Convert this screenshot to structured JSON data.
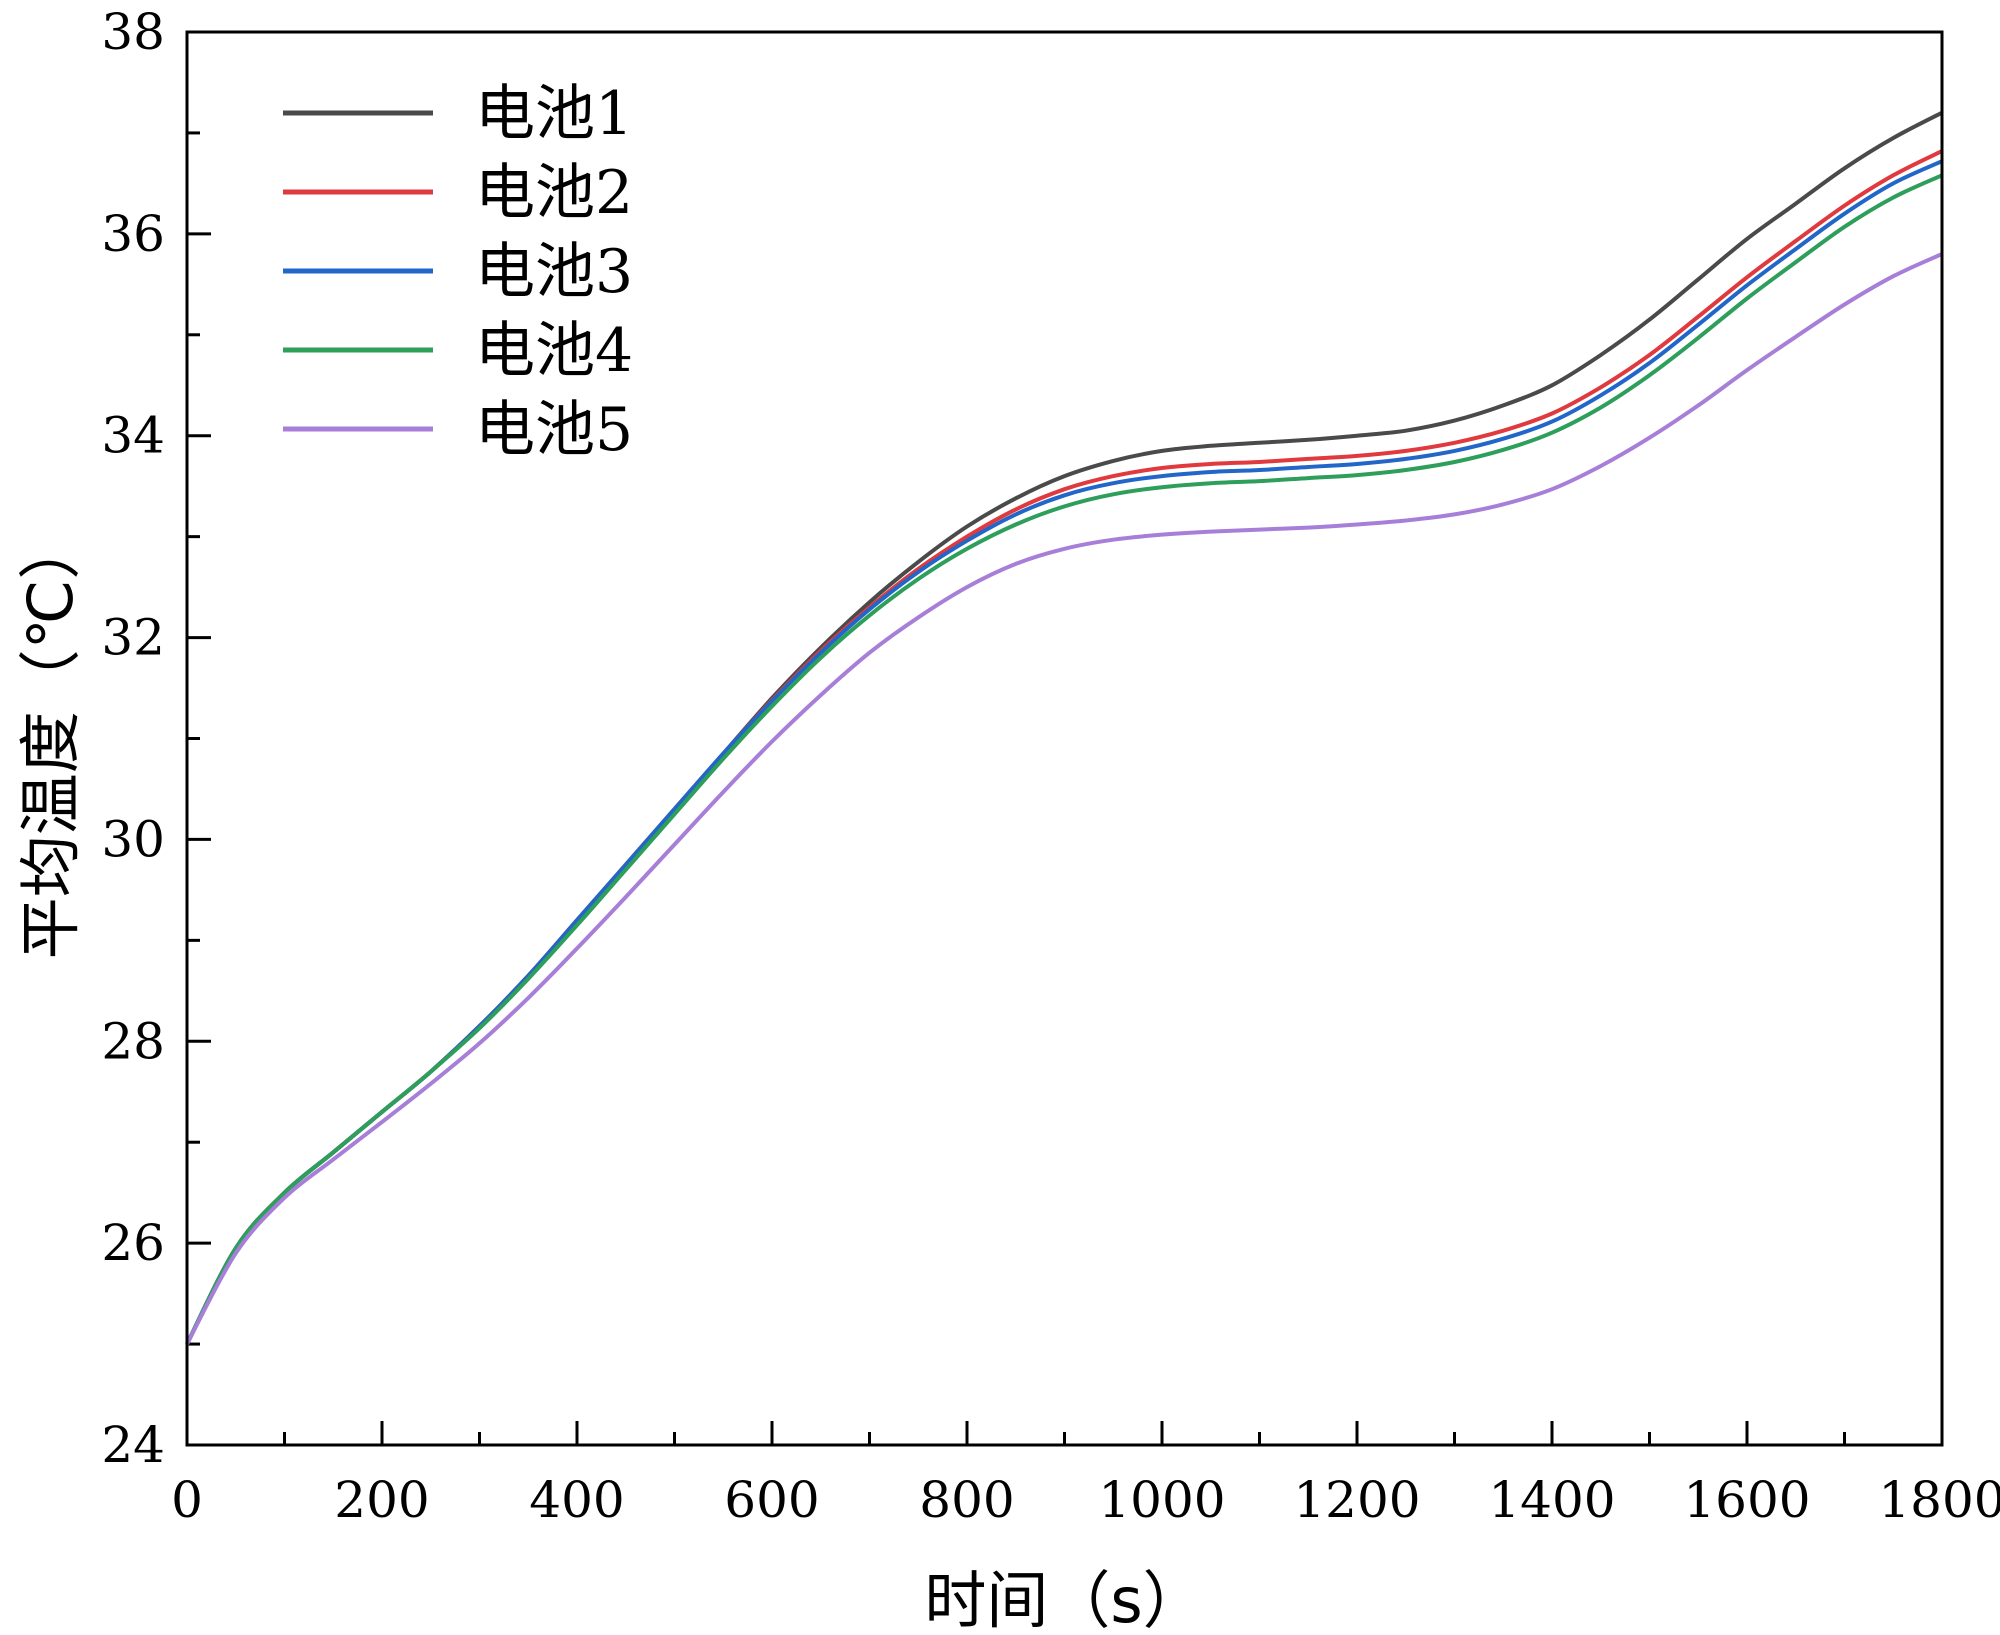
{
  "chart_data": {
    "type": "line",
    "title": "",
    "xlabel": "时间（s）",
    "ylabel": "平均温度（℃）",
    "xlim": [
      0,
      1800
    ],
    "ylim": [
      24,
      38
    ],
    "xticks": [
      0,
      200,
      400,
      600,
      800,
      1000,
      1200,
      1400,
      1600,
      1800
    ],
    "yticks": [
      24,
      26,
      28,
      30,
      32,
      34,
      36,
      38
    ],
    "xtick_labels": [
      "0",
      "200",
      "400",
      "600",
      "800",
      "1000",
      "1200",
      "1400",
      "1600",
      "1800"
    ],
    "ytick_labels": [
      "24",
      "26",
      "28",
      "30",
      "32",
      "34",
      "36",
      "38"
    ],
    "grid": false,
    "legend_position": "top-left",
    "x": [
      0,
      50,
      100,
      150,
      200,
      250,
      300,
      350,
      400,
      450,
      500,
      550,
      600,
      650,
      700,
      750,
      800,
      850,
      900,
      950,
      1000,
      1050,
      1100,
      1150,
      1200,
      1250,
      1300,
      1350,
      1400,
      1450,
      1500,
      1550,
      1600,
      1650,
      1700,
      1750,
      1800
    ],
    "series": [
      {
        "name": "电池1",
        "color": "#4a4a4a",
        "values": [
          25.0,
          25.95,
          26.5,
          26.9,
          27.3,
          27.7,
          28.15,
          28.65,
          29.2,
          29.75,
          30.3,
          30.85,
          31.4,
          31.9,
          32.35,
          32.75,
          33.1,
          33.38,
          33.6,
          33.75,
          33.85,
          33.9,
          33.93,
          33.96,
          34.0,
          34.05,
          34.15,
          34.3,
          34.5,
          34.8,
          35.15,
          35.55,
          35.95,
          36.3,
          36.65,
          36.95,
          37.2
        ]
      },
      {
        "name": "电池2",
        "color": "#e0393e",
        "values": [
          25.0,
          25.95,
          26.5,
          26.9,
          27.3,
          27.7,
          28.15,
          28.65,
          29.2,
          29.75,
          30.3,
          30.85,
          31.38,
          31.87,
          32.3,
          32.68,
          33.0,
          33.27,
          33.47,
          33.6,
          33.68,
          33.72,
          33.74,
          33.77,
          33.8,
          33.85,
          33.93,
          34.05,
          34.22,
          34.48,
          34.8,
          35.18,
          35.57,
          35.93,
          36.28,
          36.58,
          36.82
        ]
      },
      {
        "name": "电池3",
        "color": "#2166c8",
        "values": [
          25.0,
          25.95,
          26.5,
          26.9,
          27.3,
          27.7,
          28.15,
          28.65,
          29.2,
          29.75,
          30.3,
          30.85,
          31.37,
          31.85,
          32.28,
          32.65,
          32.96,
          33.22,
          33.41,
          33.53,
          33.6,
          33.64,
          33.66,
          33.69,
          33.72,
          33.77,
          33.85,
          33.97,
          34.14,
          34.4,
          34.72,
          35.1,
          35.49,
          35.85,
          36.2,
          36.5,
          36.72
        ]
      },
      {
        "name": "电池4",
        "color": "#2e9e5b",
        "values": [
          25.0,
          25.95,
          26.5,
          26.9,
          27.3,
          27.7,
          28.13,
          28.62,
          29.15,
          29.7,
          30.25,
          30.8,
          31.32,
          31.8,
          32.22,
          32.58,
          32.88,
          33.12,
          33.3,
          33.42,
          33.49,
          33.53,
          33.55,
          33.58,
          33.61,
          33.66,
          33.74,
          33.86,
          34.03,
          34.28,
          34.6,
          34.97,
          35.36,
          35.72,
          36.07,
          36.36,
          36.58
        ]
      },
      {
        "name": "电池5",
        "color": "#a87fd8",
        "values": [
          25.0,
          25.9,
          26.45,
          26.83,
          27.2,
          27.58,
          27.98,
          28.43,
          28.92,
          29.43,
          29.95,
          30.47,
          30.97,
          31.43,
          31.85,
          32.2,
          32.5,
          32.73,
          32.88,
          32.97,
          33.02,
          33.05,
          33.07,
          33.09,
          33.12,
          33.16,
          33.22,
          33.32,
          33.47,
          33.7,
          33.98,
          34.3,
          34.65,
          34.98,
          35.3,
          35.58,
          35.8
        ]
      }
    ]
  }
}
